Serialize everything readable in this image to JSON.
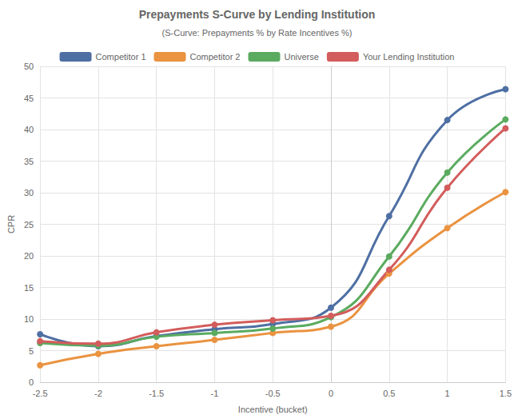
{
  "chart_data": {
    "type": "line",
    "title": "Prepayments S-Curve by Lending Institution",
    "subtitle": "(S-Curve: Prepayments % by Rate Incentives %)",
    "x_label": "Incentive (bucket)",
    "y_label": "CPR",
    "x": [
      -2.5,
      -2,
      -1.5,
      -1,
      -0.5,
      0,
      0.5,
      1,
      1.5
    ],
    "series": [
      {
        "name": "Competitor 1",
        "color": "#4e6fa3",
        "values": [
          7.6,
          5.7,
          7.3,
          8.4,
          9.2,
          11.8,
          26.3,
          41.5,
          46.4
        ]
      },
      {
        "name": "Competitor 2",
        "color": "#ea9340",
        "values": [
          2.7,
          4.5,
          5.7,
          6.7,
          7.8,
          8.8,
          17.2,
          24.4,
          30.1
        ]
      },
      {
        "name": "Universe",
        "color": "#5aab5f",
        "values": [
          6.2,
          5.8,
          7.2,
          7.8,
          8.5,
          10.3,
          19.9,
          33.2,
          41.6
        ]
      },
      {
        "name": "Your Lending Institution",
        "color": "#d35c5c",
        "values": [
          6.5,
          6.1,
          7.9,
          9.1,
          9.8,
          10.5,
          17.8,
          30.8,
          40.2
        ]
      }
    ],
    "xlim": [
      -2.5,
      1.5
    ],
    "xticks": [
      -2.5,
      -2,
      -1.5,
      -1,
      -0.5,
      0,
      0.5,
      1,
      1.5
    ],
    "ylim": [
      0,
      50
    ],
    "yticks": [
      0,
      5,
      10,
      15,
      20,
      25,
      30,
      35,
      40,
      45,
      50
    ],
    "grid": true,
    "legend": "top",
    "marker": "circle",
    "line_style": "smooth"
  }
}
